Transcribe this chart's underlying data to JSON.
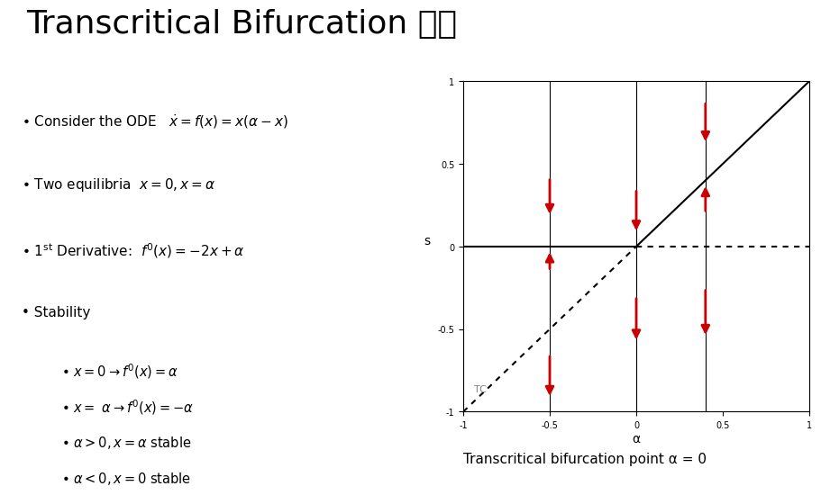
{
  "title": "Transcritical Bifurcation 분기",
  "title_fontsize": 26,
  "title_fontweight": "normal",
  "background_color": "#ffffff",
  "bullet_items": [
    "Consider the ODE   $\\dot{x} = f(x) = x(\\alpha - x)$",
    "Two equilibria  $x = 0, x = \\alpha$",
    "1$^{\\mathrm{st}}$ Derivative:  $f'(x) = -2x + \\alpha$",
    "Stability"
  ],
  "sub_bullets": [
    "$x = 0 \\rightarrow f'(x) = \\alpha$",
    "$x = \\ \\alpha \\rightarrow f'(x) = -\\alpha$",
    "$\\alpha > 0, x = \\alpha$ stable",
    "$\\alpha < 0, x = 0$ stable"
  ],
  "caption": "Transcritical bifurcation point α = 0",
  "caption_fontsize": 11,
  "plot_xlim": [
    -1,
    1
  ],
  "plot_ylim": [
    -1,
    1
  ],
  "plot_xlabel": "α",
  "plot_ylabel": "s",
  "solid_line_color": "#000000",
  "dotted_line_color": "#000000",
  "arrow_color": "#cc0000",
  "TC_label": "TC",
  "vertical_lines_alpha": [
    -0.5,
    0.0,
    0.4
  ]
}
